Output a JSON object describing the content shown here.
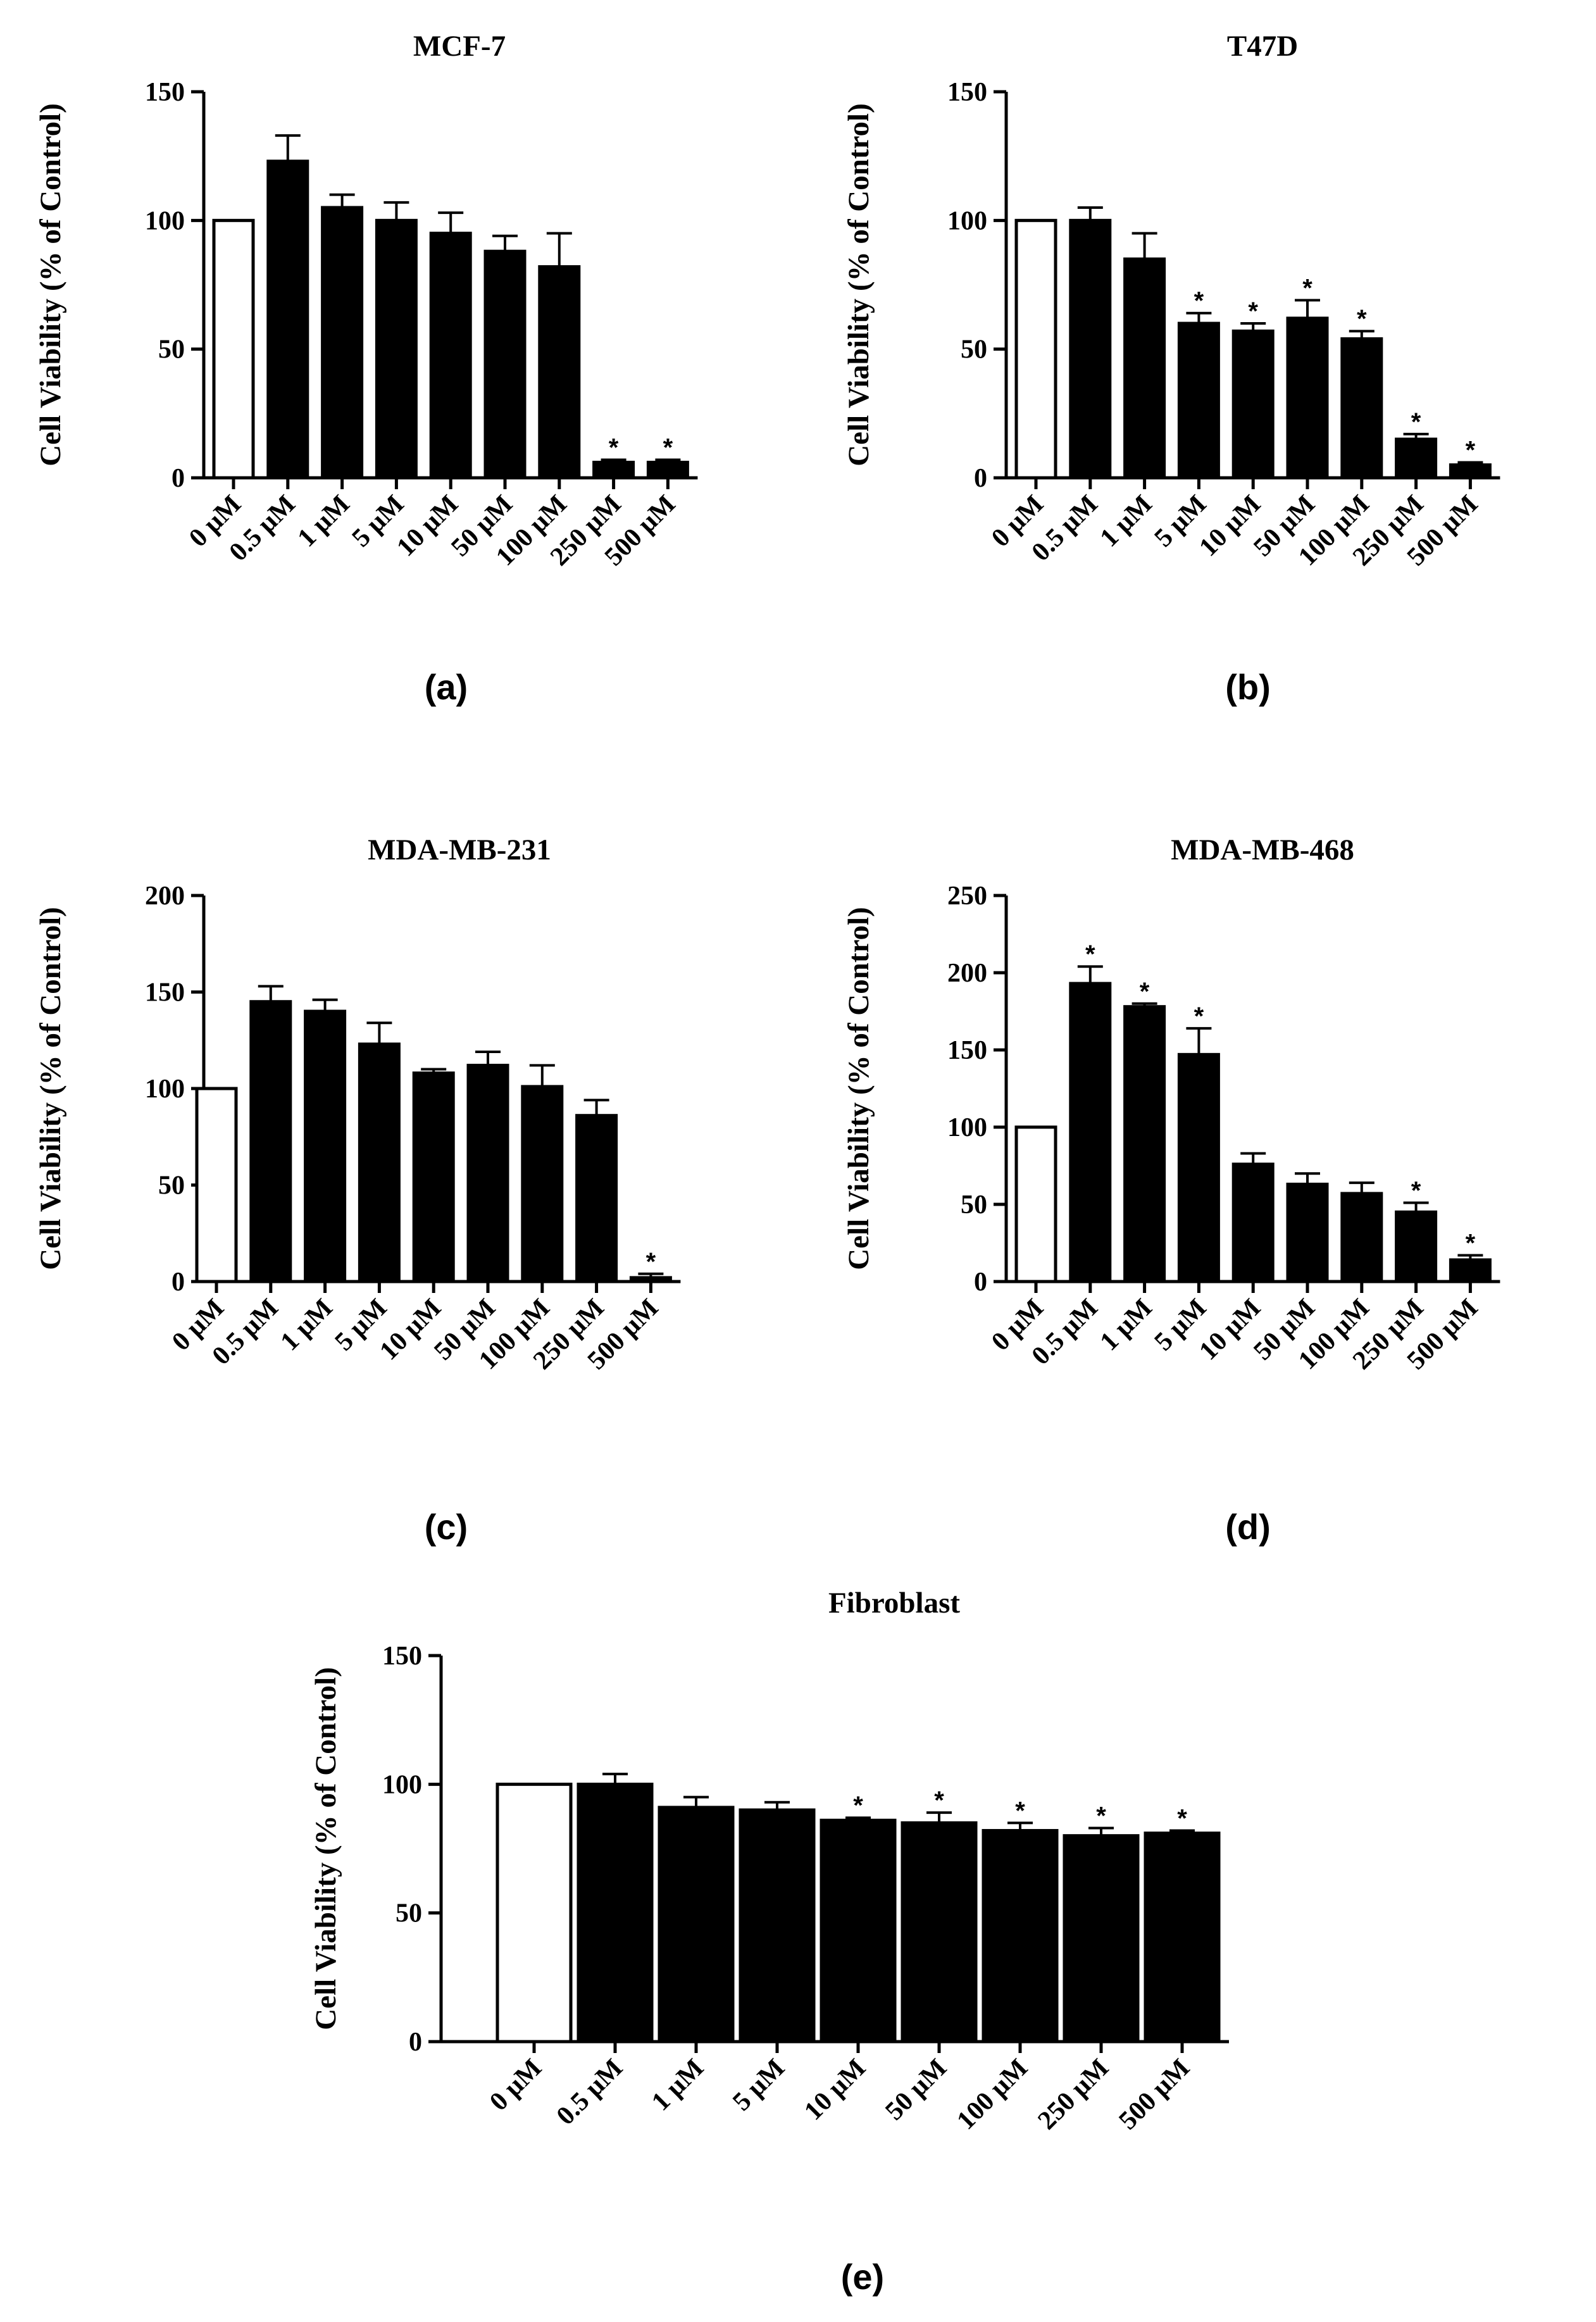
{
  "chart_data": [
    {
      "type": "bar",
      "panel": "(a)",
      "title": "MCF-7",
      "ylabel": "Cell Viability (% of Control)",
      "xlabel": "",
      "ylim": [
        0,
        150
      ],
      "yticks": [
        0,
        50,
        100,
        150
      ],
      "categories": [
        "0 µM",
        "0.5 µM",
        "1 µM",
        "5 µM",
        "10 µM",
        "50 µM",
        "100 µM",
        "250 µM",
        "500 µM"
      ],
      "values": [
        100,
        123,
        105,
        100,
        95,
        88,
        82,
        6,
        6
      ],
      "errors": [
        0,
        10,
        5,
        7,
        8,
        6,
        13,
        1,
        1
      ],
      "significant": [
        false,
        false,
        false,
        false,
        false,
        false,
        false,
        true,
        true
      ],
      "control_color": "#ffffff",
      "treatment_color": "#000000"
    },
    {
      "type": "bar",
      "panel": "(b)",
      "title": "T47D",
      "ylabel": "Cell Viability (% of Control)",
      "xlabel": "",
      "ylim": [
        0,
        150
      ],
      "yticks": [
        0,
        50,
        100,
        150
      ],
      "categories": [
        "0 µM",
        "0.5 µM",
        "1 µM",
        "5 µM",
        "10 µM",
        "50 µM",
        "100 µM",
        "250 µM",
        "500 µM"
      ],
      "values": [
        100,
        100,
        85,
        60,
        57,
        62,
        54,
        15,
        5
      ],
      "errors": [
        0,
        5,
        10,
        4,
        3,
        7,
        3,
        2,
        1
      ],
      "significant": [
        false,
        false,
        false,
        true,
        true,
        true,
        true,
        true,
        true
      ],
      "control_color": "#ffffff",
      "treatment_color": "#000000"
    },
    {
      "type": "bar",
      "panel": "(c)",
      "title": "MDA-MB-231",
      "ylabel": "Cell Viability (% of Control)",
      "xlabel": "",
      "ylim": [
        0,
        200
      ],
      "yticks": [
        0,
        50,
        100,
        150,
        200
      ],
      "categories": [
        "0 µM",
        "0.5 µM",
        "1 µM",
        "5 µM",
        "10 µM",
        "50 µM",
        "100 µM",
        "250 µM",
        "500 µM"
      ],
      "values": [
        100,
        145,
        140,
        123,
        108,
        112,
        101,
        86,
        2
      ],
      "errors": [
        0,
        8,
        6,
        11,
        2,
        7,
        11,
        8,
        2
      ],
      "significant": [
        false,
        false,
        false,
        false,
        false,
        false,
        false,
        false,
        true
      ],
      "control_color": "#ffffff",
      "treatment_color": "#000000"
    },
    {
      "type": "bar",
      "panel": "(d)",
      "title": "MDA-MB-468",
      "ylabel": "Cell Viability (% of Control)",
      "xlabel": "",
      "ylim": [
        0,
        250
      ],
      "yticks": [
        0,
        50,
        100,
        150,
        200,
        250
      ],
      "categories": [
        "0 µM",
        "0.5 µM",
        "1 µM",
        "5 µM",
        "10 µM",
        "50 µM",
        "100 µM",
        "250 µM",
        "500 µM"
      ],
      "values": [
        100,
        193,
        178,
        147,
        76,
        63,
        57,
        45,
        14
      ],
      "errors": [
        0,
        11,
        2,
        17,
        7,
        7,
        7,
        6,
        3
      ],
      "significant": [
        false,
        true,
        true,
        true,
        false,
        false,
        false,
        true,
        true
      ],
      "control_color": "#ffffff",
      "treatment_color": "#000000"
    },
    {
      "type": "bar",
      "panel": "(e)",
      "title": "Fibroblast",
      "ylabel": "Cell Viability (% of Control)",
      "xlabel": "",
      "ylim": [
        0,
        150
      ],
      "yticks": [
        0,
        50,
        100,
        150
      ],
      "categories": [
        "0 µM",
        "0.5 µM",
        "1 µM",
        "5 µM",
        "10 µM",
        "50 µM",
        "100 µM",
        "250 µM",
        "500 µM"
      ],
      "values": [
        100,
        100,
        91,
        90,
        86,
        85,
        82,
        80,
        81
      ],
      "errors": [
        0,
        4,
        4,
        3,
        1,
        4,
        3,
        3,
        1
      ],
      "significant": [
        false,
        false,
        false,
        false,
        true,
        true,
        true,
        true,
        true
      ],
      "control_color": "#ffffff",
      "treatment_color": "#000000"
    }
  ],
  "significance_marker": "*"
}
